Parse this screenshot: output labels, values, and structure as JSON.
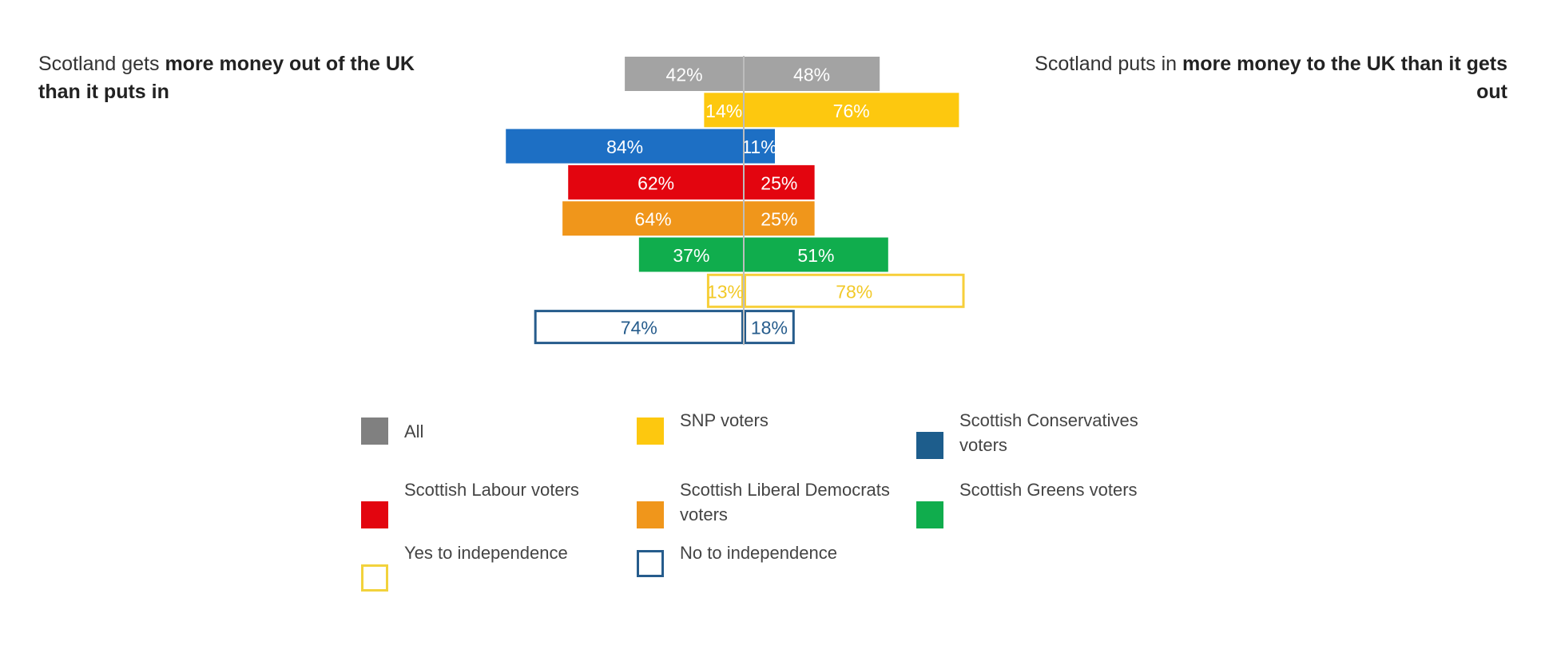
{
  "header": {
    "left_title_plain": "Scotland gets ",
    "left_title_bold": "more money out of the UK than it puts in",
    "right_title_plain": "Scotland puts in ",
    "right_title_bold": "more money to the UK than it gets out"
  },
  "chart_data": {
    "type": "bar",
    "orientation": "horizontal-diverging",
    "unit": "%",
    "categories": [
      "All",
      "SNP voters",
      "Scottish Conservatives voters",
      "Scottish Labour voters",
      "Scottish Liberal Democrats voters",
      "Scottish Greens voters",
      "Yes to independence",
      "No to independence"
    ],
    "series": [
      {
        "values": [
          42,
          14,
          84,
          62,
          64,
          37,
          13,
          74
        ]
      },
      {
        "values": [
          48,
          76,
          11,
          25,
          25,
          51,
          78,
          18
        ]
      }
    ],
    "left_labels": [
      "42%",
      "14%",
      "84%",
      "62%",
      "64%",
      "37%",
      "13%",
      "74%"
    ],
    "right_labels": [
      "48%",
      "76%",
      "11%",
      "25%",
      "25%",
      "51%",
      "78%",
      "18%"
    ],
    "colors": [
      "#a3a3a3",
      "#fdc80f",
      "#1d6fc4",
      "#e3050f",
      "#f0961b",
      "#10ad4d",
      "#f7cf3a",
      "#265c8c"
    ],
    "outlined": [
      false,
      false,
      false,
      false,
      false,
      false,
      true,
      true
    ],
    "label_colors": [
      "#ffffff",
      "#ffffff",
      "#ffffff",
      "#ffffff",
      "#ffffff",
      "#ffffff",
      "#f2c928",
      "#265c8c"
    ],
    "xlim": [
      -84,
      84
    ]
  },
  "legend": {
    "items": [
      {
        "label": "All",
        "color": "#808080",
        "outline": false
      },
      {
        "label": "SNP voters",
        "color": "#fdc80f",
        "outline": false
      },
      {
        "label": "Scottish Conservatives voters",
        "color": "#1d5d8c",
        "outline": false
      },
      {
        "label": "Scottish Labour voters",
        "color": "#e3050f",
        "outline": false
      },
      {
        "label": "Scottish Liberal Democrats voters",
        "color": "#f0961b",
        "outline": false
      },
      {
        "label": "Scottish Greens voters",
        "color": "#10ad4d",
        "outline": false
      },
      {
        "label": "Yes to independence",
        "color": "#f2d23c",
        "outline": true
      },
      {
        "label": "No to independence",
        "color": "#265c8c",
        "outline": true
      }
    ]
  }
}
